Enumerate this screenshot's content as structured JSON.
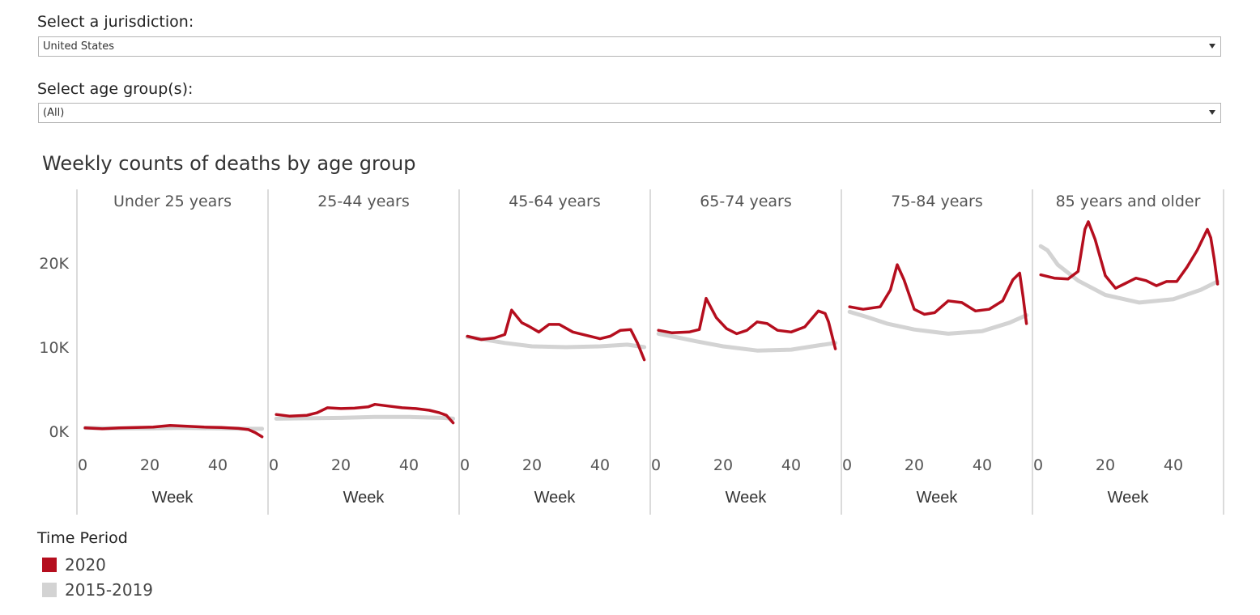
{
  "filters": {
    "jurisdiction_label": "Select a jurisdiction:",
    "jurisdiction_value": "United States",
    "age_label": "Select age group(s):",
    "age_value": "(All)"
  },
  "colors": {
    "current": "#b50e1e",
    "baseline": "#d3d3d3",
    "divider": "#cfcfcf",
    "text": "#555555"
  },
  "legend": {
    "title": "Time Period",
    "items": [
      {
        "label": "2020",
        "color": "#b50e1e"
      },
      {
        "label": "2015-2019",
        "color": "#d3d3d3"
      }
    ]
  },
  "chart_data": {
    "type": "line",
    "title": "Weekly counts of deaths by age group",
    "xlabel": "Week",
    "ylabel": "",
    "xlim": [
      0,
      53
    ],
    "x_ticks": [
      0,
      20,
      40
    ],
    "ylim": [
      0,
      24000
    ],
    "y_ticks": [
      0,
      10000,
      20000
    ],
    "y_tick_labels": [
      "0K",
      "10K",
      "20K"
    ],
    "grid": false,
    "legend_position": "bottom-left",
    "panels": [
      {
        "name": "Under 25 years",
        "series": [
          {
            "name": "2020",
            "x": [
              1,
              6,
              11,
              16,
              21,
              26,
              31,
              36,
              41,
              46,
              49,
              51,
              53
            ],
            "y": [
              400,
              300,
              400,
              450,
              500,
              700,
              600,
              500,
              450,
              350,
              200,
              -150,
              -650
            ]
          },
          {
            "name": "2015-2019",
            "x": [
              1,
              10,
              20,
              30,
              40,
              50,
              53
            ],
            "y": [
              400,
              350,
              350,
              400,
              350,
              300,
              300
            ]
          }
        ]
      },
      {
        "name": "25-44 years",
        "series": [
          {
            "name": "2020",
            "x": [
              1,
              5,
              10,
              13,
              16,
              20,
              24,
              28,
              30,
              34,
              38,
              42,
              46,
              49,
              51,
              53
            ],
            "y": [
              2000,
              1800,
              1900,
              2200,
              2800,
              2700,
              2750,
              2900,
              3200,
              3000,
              2800,
              2700,
              2500,
              2200,
              1900,
              1000
            ]
          },
          {
            "name": "2015-2019",
            "x": [
              1,
              10,
              20,
              30,
              40,
              50,
              53
            ],
            "y": [
              1500,
              1550,
              1600,
              1700,
              1700,
              1600,
              1500
            ]
          }
        ]
      },
      {
        "name": "45-64 years",
        "series": [
          {
            "name": "2020",
            "x": [
              1,
              5,
              9,
              12,
              14,
              17,
              19,
              22,
              25,
              28,
              32,
              36,
              40,
              43,
              46,
              49,
              51,
              53
            ],
            "y": [
              11300,
              10900,
              11100,
              11500,
              14400,
              12900,
              12500,
              11800,
              12700,
              12700,
              11800,
              11400,
              11000,
              11300,
              12000,
              12100,
              10500,
              8500
            ]
          },
          {
            "name": "2015-2019",
            "x": [
              1,
              6,
              12,
              20,
              30,
              40,
              48,
              53
            ],
            "y": [
              11200,
              10900,
              10500,
              10100,
              10000,
              10100,
              10300,
              10000
            ]
          }
        ]
      },
      {
        "name": "65-74 years",
        "series": [
          {
            "name": "2020",
            "x": [
              1,
              5,
              10,
              13,
              15,
              18,
              21,
              24,
              27,
              30,
              33,
              36,
              40,
              44,
              48,
              50,
              51,
              53
            ],
            "y": [
              12000,
              11700,
              11800,
              12100,
              15800,
              13500,
              12200,
              11600,
              12000,
              13000,
              12800,
              12000,
              11800,
              12400,
              14300,
              14000,
              13000,
              9800
            ]
          },
          {
            "name": "2015-2019",
            "x": [
              1,
              6,
              12,
              20,
              30,
              40,
              48,
              53
            ],
            "y": [
              11600,
              11200,
              10700,
              10100,
              9600,
              9700,
              10200,
              10500
            ]
          }
        ]
      },
      {
        "name": "75-84 years",
        "series": [
          {
            "name": "2020",
            "x": [
              1,
              5,
              10,
              13,
              15,
              17,
              20,
              23,
              26,
              30,
              34,
              38,
              42,
              46,
              49,
              51,
              52,
              53
            ],
            "y": [
              14800,
              14500,
              14800,
              16800,
              19800,
              18000,
              14500,
              13900,
              14100,
              15500,
              15300,
              14300,
              14500,
              15500,
              18000,
              18800,
              16000,
              12800
            ]
          },
          {
            "name": "2015-2019",
            "x": [
              1,
              6,
              12,
              20,
              30,
              40,
              48,
              53
            ],
            "y": [
              14200,
              13600,
              12800,
              12100,
              11600,
              11900,
              12900,
              13800
            ]
          }
        ]
      },
      {
        "name": "85 years and older",
        "series": [
          {
            "name": "2020",
            "x": [
              1,
              5,
              9,
              12,
              14,
              15,
              17,
              20,
              23,
              26,
              29,
              32,
              35,
              38,
              41,
              44,
              47,
              50,
              51,
              52,
              53
            ],
            "y": [
              18600,
              18200,
              18100,
              19000,
              24000,
              24900,
              22800,
              18500,
              17000,
              17600,
              18200,
              17900,
              17300,
              17800,
              17800,
              19500,
              21500,
              24000,
              23000,
              20500,
              17500
            ]
          },
          {
            "name": "2015-2019",
            "x": [
              1,
              3,
              6,
              12,
              20,
              30,
              40,
              48,
              53
            ],
            "y": [
              22000,
              21500,
              19800,
              17900,
              16200,
              15300,
              15700,
              16800,
              17800
            ]
          }
        ]
      }
    ]
  }
}
